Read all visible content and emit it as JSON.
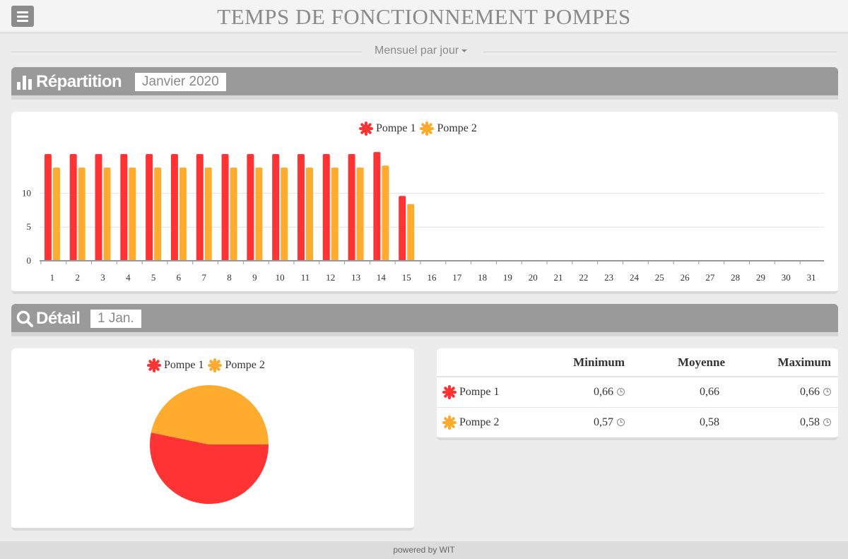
{
  "header": {
    "title": "TEMPS DE FONCTIONNEMENT POMPES",
    "menu_icon": "hamburger-icon"
  },
  "period": {
    "label": "Mensuel par jour"
  },
  "repartition": {
    "title": "Répartition",
    "badge": "Janvier 2020",
    "icon": "bar-chart-icon"
  },
  "detail": {
    "title": "Détail",
    "badge": "1 Jan.",
    "icon": "search-icon"
  },
  "colors": {
    "pompe1": "#ff3333",
    "pompe2": "#ffab2e",
    "header_bg": "#9a9a9a"
  },
  "chart_data": [
    {
      "type": "bar",
      "title": "",
      "xlabel": "",
      "ylabel": "",
      "ylim": [
        0,
        15.8
      ],
      "yticks": [
        0,
        5,
        10
      ],
      "grid": true,
      "legend_position": "top-center",
      "categories": [
        "1",
        "2",
        "3",
        "4",
        "5",
        "6",
        "7",
        "8",
        "9",
        "10",
        "11",
        "12",
        "13",
        "14",
        "15",
        "16",
        "17",
        "18",
        "19",
        "20",
        "21",
        "22",
        "23",
        "24",
        "25",
        "26",
        "27",
        "28",
        "29",
        "30",
        "31"
      ],
      "series": [
        {
          "name": "Pompe 1",
          "color": "#ff3333",
          "values": [
            15.8,
            15.8,
            15.8,
            15.8,
            15.8,
            15.8,
            15.8,
            15.8,
            15.8,
            15.8,
            15.8,
            15.8,
            15.8,
            16.1,
            9.6,
            0,
            0,
            0,
            0,
            0,
            0,
            0,
            0,
            0,
            0,
            0,
            0,
            0,
            0,
            0,
            0
          ]
        },
        {
          "name": "Pompe 2",
          "color": "#ffab2e",
          "values": [
            13.8,
            13.8,
            13.8,
            13.8,
            13.8,
            13.8,
            13.8,
            13.8,
            13.8,
            13.8,
            13.8,
            13.8,
            13.8,
            14.1,
            8.4,
            0,
            0,
            0,
            0,
            0,
            0,
            0,
            0,
            0,
            0,
            0,
            0,
            0,
            0,
            0,
            0
          ]
        }
      ]
    },
    {
      "type": "pie",
      "title": "",
      "legend_position": "top-center",
      "series": [
        {
          "name": "Pompe 1",
          "color": "#ff3333",
          "value": 0.66
        },
        {
          "name": "Pompe 2",
          "color": "#ffab2e",
          "value": 0.58
        }
      ]
    }
  ],
  "stats_table": {
    "columns": [
      "",
      "Minimum",
      "Moyenne",
      "Maximum"
    ],
    "rows": [
      {
        "name": "Pompe 1",
        "color": "#ff3333",
        "min": "0,66",
        "avg": "0,66",
        "max": "0,66"
      },
      {
        "name": "Pompe 2",
        "color": "#ffab2e",
        "min": "0,57",
        "avg": "0,58",
        "max": "0,58"
      }
    ]
  },
  "footer": {
    "text": "powered by WIT"
  }
}
